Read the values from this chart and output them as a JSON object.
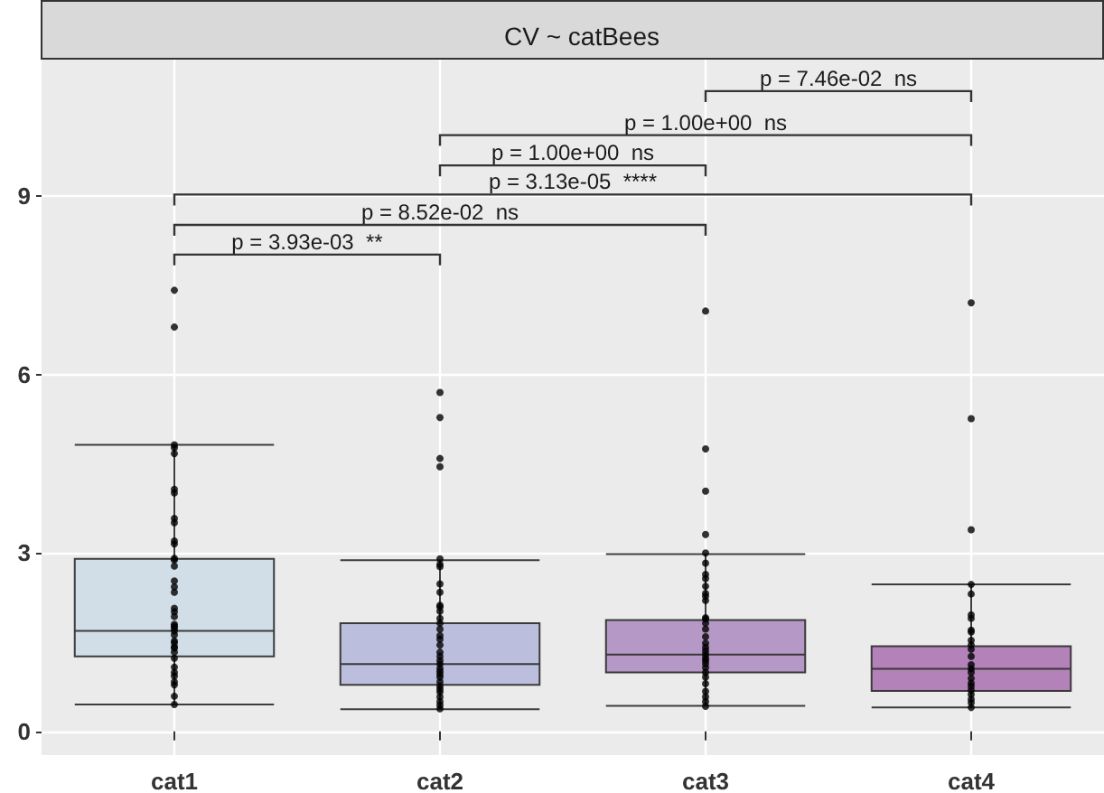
{
  "chart_data": {
    "type": "box",
    "title": "CV ~ catBees",
    "categories": [
      "cat1",
      "cat2",
      "cat3",
      "cat4"
    ],
    "colors": [
      "#d0dde8",
      "#b8bcdc",
      "#b393c4",
      "#b07cb6"
    ],
    "boxes": [
      {
        "low": 0.45,
        "q1": 1.26,
        "median": 1.69,
        "q3": 2.9,
        "high": 4.82
      },
      {
        "low": 0.37,
        "q1": 0.78,
        "median": 1.13,
        "q3": 1.82,
        "high": 2.88
      },
      {
        "low": 0.43,
        "q1": 0.99,
        "median": 1.29,
        "q3": 1.87,
        "high": 2.98
      },
      {
        "low": 0.4,
        "q1": 0.68,
        "median": 1.05,
        "q3": 1.43,
        "high": 2.47
      }
    ],
    "series": [
      {
        "type": "scatter",
        "color": "#000000",
        "x": [
          "cat1",
          "cat1",
          "cat1",
          "cat1",
          "cat1",
          "cat1",
          "cat1",
          "cat1",
          "cat1",
          "cat1",
          "cat1",
          "cat1",
          "cat1",
          "cat1",
          "cat1",
          "cat1",
          "cat1",
          "cat1",
          "cat1",
          "cat1",
          "cat1",
          "cat1",
          "cat1",
          "cat1",
          "cat1",
          "cat1",
          "cat1",
          "cat1",
          "cat1",
          "cat1",
          "cat1",
          "cat1",
          "cat1",
          "cat1",
          "cat1",
          "cat1",
          "cat1",
          "cat1",
          "cat2",
          "cat2",
          "cat2",
          "cat2",
          "cat2",
          "cat2",
          "cat2",
          "cat2",
          "cat2",
          "cat2",
          "cat2",
          "cat2",
          "cat2",
          "cat2",
          "cat2",
          "cat2",
          "cat2",
          "cat2",
          "cat2",
          "cat2",
          "cat2",
          "cat2",
          "cat2",
          "cat2",
          "cat2",
          "cat2",
          "cat2",
          "cat2",
          "cat2",
          "cat2",
          "cat2",
          "cat2",
          "cat2",
          "cat2",
          "cat3",
          "cat3",
          "cat3",
          "cat3",
          "cat3",
          "cat3",
          "cat3",
          "cat3",
          "cat3",
          "cat3",
          "cat3",
          "cat3",
          "cat3",
          "cat3",
          "cat3",
          "cat3",
          "cat3",
          "cat3",
          "cat3",
          "cat3",
          "cat3",
          "cat3",
          "cat3",
          "cat3",
          "cat3",
          "cat3",
          "cat3",
          "cat3",
          "cat3",
          "cat3",
          "cat3",
          "cat3",
          "cat4",
          "cat4",
          "cat4",
          "cat4",
          "cat4",
          "cat4",
          "cat4",
          "cat4",
          "cat4",
          "cat4",
          "cat4",
          "cat4",
          "cat4",
          "cat4",
          "cat4",
          "cat4",
          "cat4",
          "cat4",
          "cat4",
          "cat4",
          "cat4",
          "cat4",
          "cat4",
          "cat4"
        ],
        "values": [
          7.42,
          6.8,
          4.82,
          4.77,
          4.67,
          4.07,
          4.01,
          3.58,
          3.51,
          3.2,
          3.15,
          2.91,
          2.88,
          2.78,
          2.53,
          2.43,
          2.34,
          2.07,
          2.01,
          1.93,
          1.8,
          1.77,
          1.74,
          1.69,
          1.62,
          1.52,
          1.49,
          1.42,
          1.4,
          1.33,
          1.23,
          1.08,
          0.99,
          0.93,
          0.83,
          0.78,
          0.59,
          0.45,
          5.7,
          5.28,
          4.59,
          4.45,
          2.9,
          2.81,
          2.77,
          2.48,
          2.34,
          2.12,
          2.09,
          2.02,
          1.9,
          1.82,
          1.72,
          1.61,
          1.55,
          1.45,
          1.33,
          1.26,
          1.19,
          1.13,
          1.06,
          1.01,
          0.96,
          0.91,
          0.83,
          0.76,
          0.71,
          0.66,
          0.58,
          0.5,
          0.44,
          0.38,
          7.07,
          4.75,
          4.04,
          3.31,
          3.0,
          2.83,
          2.64,
          2.57,
          2.44,
          2.32,
          2.27,
          2.2,
          1.91,
          1.89,
          1.82,
          1.72,
          1.59,
          1.48,
          1.41,
          1.35,
          1.29,
          1.23,
          1.19,
          1.14,
          1.07,
          0.99,
          0.91,
          0.8,
          0.67,
          0.58,
          0.5,
          0.42,
          7.21,
          5.26,
          3.39,
          2.47,
          2.31,
          1.96,
          1.9,
          1.7,
          1.67,
          1.53,
          1.45,
          1.38,
          1.26,
          1.12,
          1.05,
          0.99,
          0.89,
          0.81,
          0.76,
          0.69,
          0.62,
          0.54,
          0.48,
          0.4
        ]
      }
    ],
    "annotations": [
      "p = 3.93e-03  **",
      "p = 8.52e-02  ns",
      "p = 3.13e-05  ****",
      "p = 1.00e+00  ns",
      "p = 1.00e+00  ns",
      "p = 7.46e-02  ns"
    ],
    "ylim": [
      -0.4,
      11.3
    ],
    "yticks": [
      0,
      3,
      6,
      9
    ],
    "grid": true,
    "marker": "circle"
  }
}
